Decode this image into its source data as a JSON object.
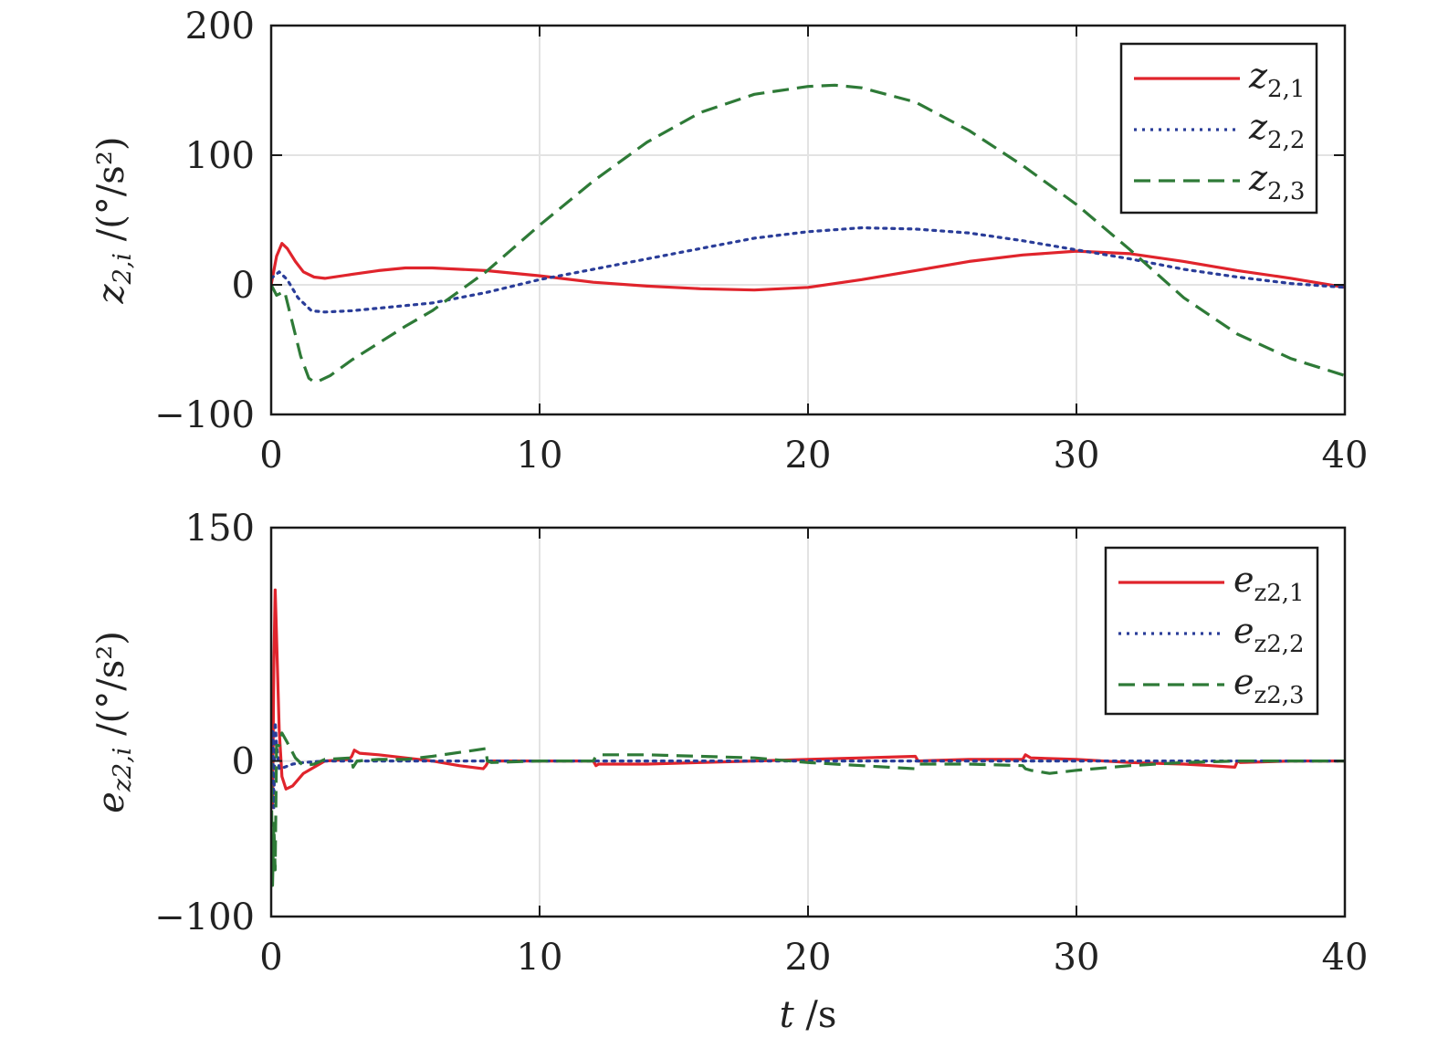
{
  "chart_data": [
    {
      "type": "line",
      "ylabel": {
        "main": "z",
        "sub": "2,i",
        "unit": " /(°/s²)"
      },
      "xlabel": "",
      "xlim": [
        0,
        40
      ],
      "ylim": [
        -100,
        200
      ],
      "xticks": [
        0,
        10,
        20,
        30,
        40
      ],
      "yticks": [
        -100,
        0,
        100,
        200
      ],
      "xtick_labels": [
        "0",
        "10",
        "20",
        "30",
        "40"
      ],
      "ytick_labels": [
        "−100",
        "0",
        "100",
        "200"
      ],
      "grid": true,
      "legend": {
        "placement": "top-right"
      },
      "series": [
        {
          "name": "z",
          "sub": "2,1",
          "color": "#e0242c",
          "style": "solid",
          "x": [
            0,
            0.2,
            0.4,
            0.6,
            0.9,
            1.2,
            1.6,
            2,
            3,
            4,
            5,
            6,
            8,
            10,
            12,
            14,
            16,
            18,
            20,
            22,
            24,
            26,
            28,
            30,
            32,
            34,
            36,
            38,
            40
          ],
          "y": [
            0,
            22,
            32,
            28,
            18,
            10,
            6,
            5,
            8,
            11,
            13,
            13,
            11,
            7,
            2,
            -1,
            -3,
            -4,
            -2,
            4,
            11,
            18,
            23,
            26,
            24,
            18,
            11,
            5,
            -2
          ]
        },
        {
          "name": "z",
          "sub": "2,2",
          "color": "#2a3d99",
          "style": "dotted",
          "x": [
            0,
            0.3,
            0.6,
            1,
            1.5,
            2,
            3,
            4,
            6,
            8,
            10,
            12,
            14,
            16,
            18,
            20,
            22,
            24,
            26,
            28,
            30,
            32,
            34,
            36,
            38,
            40
          ],
          "y": [
            5,
            10,
            4,
            -10,
            -20,
            -21,
            -20,
            -18,
            -14,
            -6,
            4,
            12,
            20,
            28,
            36,
            41,
            44,
            43,
            40,
            34,
            27,
            20,
            12,
            6,
            1,
            -2
          ]
        },
        {
          "name": "z",
          "sub": "2,3",
          "color": "#2e7a37",
          "style": "dashed",
          "x": [
            0,
            0.2,
            0.5,
            0.8,
            1.1,
            1.4,
            1.6,
            1.8,
            2.2,
            3,
            4,
            5,
            6,
            7,
            8,
            10,
            12,
            14,
            16,
            18,
            20,
            21,
            22,
            24,
            26,
            28,
            30,
            32,
            34,
            36,
            38,
            40
          ],
          "y": [
            0,
            -8,
            -5,
            -30,
            -55,
            -72,
            -75,
            -74,
            -70,
            -58,
            -45,
            -32,
            -20,
            -5,
            10,
            46,
            80,
            110,
            133,
            147,
            153,
            154,
            152,
            141,
            119,
            92,
            62,
            27,
            -10,
            -38,
            -57,
            -70
          ]
        }
      ]
    },
    {
      "type": "line",
      "ylabel": {
        "main": "e",
        "sub": "z2,i",
        "unit": " /(°/s²)"
      },
      "xlabel": {
        "main": "t",
        "unit": " /s"
      },
      "xlim": [
        0,
        40
      ],
      "ylim": [
        -100,
        150
      ],
      "xticks": [
        0,
        10,
        20,
        30,
        40
      ],
      "yticks": [
        -100,
        0,
        150
      ],
      "xtick_labels": [
        "0",
        "10",
        "20",
        "30",
        "40"
      ],
      "ytick_labels": [
        "−100",
        "0",
        "150"
      ],
      "grid": true,
      "legend": {
        "placement": "top-right"
      },
      "series": [
        {
          "name": "e",
          "sub": "z2,1",
          "color": "#e0242c",
          "style": "solid",
          "x": [
            0,
            0.05,
            0.1,
            0.15,
            0.2,
            0.3,
            0.4,
            0.55,
            0.8,
            1.2,
            2,
            2.9,
            3.0,
            3.1,
            3.3,
            4,
            5,
            6,
            7,
            7.9,
            8.0,
            8.1,
            9,
            10,
            11,
            12,
            12.1,
            12.2,
            14,
            16,
            18,
            20,
            22,
            24,
            24.1,
            26,
            28,
            28.1,
            28.3,
            30,
            32,
            34,
            35,
            35.9,
            36.0,
            36.1,
            38,
            40
          ],
          "y": [
            0,
            -30,
            60,
            110,
            80,
            20,
            -10,
            -18,
            -16,
            -8,
            0,
            1,
            3,
            7,
            5,
            4,
            2,
            0,
            -3,
            -5,
            -3,
            0,
            0,
            0,
            0,
            0,
            -3,
            -2,
            -2,
            -1,
            0,
            1,
            2,
            3,
            0,
            1,
            1,
            4,
            2,
            1,
            -1,
            -2,
            -3,
            -4,
            0,
            -1,
            0,
            0
          ]
        },
        {
          "name": "e",
          "sub": "z2,2",
          "color": "#2a3d99",
          "style": "dotted",
          "x": [
            0,
            0.05,
            0.1,
            0.15,
            0.2,
            0.3,
            0.5,
            0.8,
            1.2,
            2,
            4,
            10,
            20,
            30,
            40
          ],
          "y": [
            0,
            20,
            -30,
            25,
            10,
            -5,
            -4,
            -2,
            -1,
            0,
            0,
            0,
            0,
            0,
            0
          ]
        },
        {
          "name": "e",
          "sub": "z2,3",
          "color": "#2e7a37",
          "style": "dashed",
          "x": [
            0,
            0.05,
            0.1,
            0.15,
            0.2,
            0.3,
            0.4,
            0.6,
            0.9,
            1.2,
            1.6,
            2,
            3,
            3.05,
            3.2,
            4,
            5,
            6,
            8,
            8.05,
            8.2,
            10,
            12,
            12.1,
            12.3,
            14,
            16,
            18,
            20,
            22,
            24,
            24.1,
            26,
            28,
            28.1,
            28.3,
            29,
            30,
            32,
            34,
            36,
            38,
            40
          ],
          "y": [
            0,
            -80,
            -40,
            -70,
            10,
            10,
            18,
            12,
            2,
            -3,
            -2,
            1,
            2,
            -4,
            0,
            1,
            1,
            3,
            8,
            0,
            -1,
            0,
            0,
            3,
            4,
            4,
            3,
            2,
            -1,
            -3,
            -5,
            -2,
            -2,
            -3,
            -5,
            -6,
            -8,
            -6,
            -3,
            -1,
            0,
            0,
            0
          ]
        }
      ]
    }
  ]
}
